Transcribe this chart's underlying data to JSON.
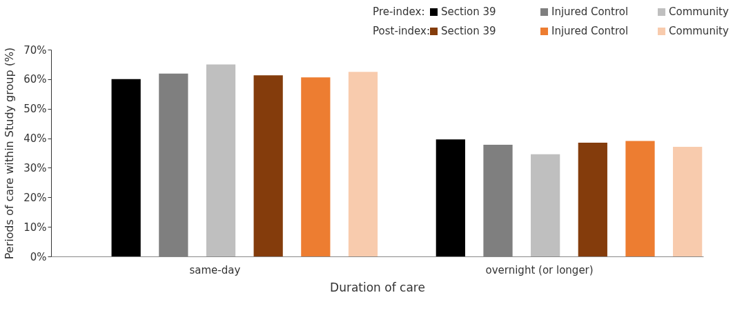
{
  "chart_data": {
    "type": "bar",
    "xlabel": "Duration of care",
    "ylabel": "Periods of care within Study group (%)",
    "categories": [
      "same-day",
      "overnight (or longer)"
    ],
    "series": [
      {
        "name": "Section 39",
        "color": "#000000",
        "values": [
          60.0,
          39.6
        ]
      },
      {
        "name": "Injured Control",
        "color": "#7f7f7f",
        "values": [
          61.9,
          37.8
        ]
      },
      {
        "name": "Community",
        "color": "#bfbfbf",
        "values": [
          65.0,
          34.6
        ]
      },
      {
        "name": "Section 39",
        "color": "#843c0c",
        "values": [
          61.3,
          38.5
        ]
      },
      {
        "name": "Injured Control",
        "color": "#ed7d31",
        "values": [
          60.6,
          39.1
        ]
      },
      {
        "name": "Community",
        "color": "#f8cbad",
        "values": [
          62.5,
          37.1
        ]
      }
    ],
    "annotations": [
      "Pre-index:",
      "Post-index:"
    ],
    "ylim": [
      0,
      70
    ],
    "yticks": [
      {
        "value": 0,
        "label": "0%"
      },
      {
        "value": 10,
        "label": "10%"
      },
      {
        "value": 20,
        "label": "20%"
      },
      {
        "value": 30,
        "label": "30%"
      },
      {
        "value": 40,
        "label": "40%"
      },
      {
        "value": 50,
        "label": "50%"
      },
      {
        "value": 60,
        "label": "60%"
      },
      {
        "value": 70,
        "label": "70%"
      }
    ],
    "legend": "top right"
  }
}
